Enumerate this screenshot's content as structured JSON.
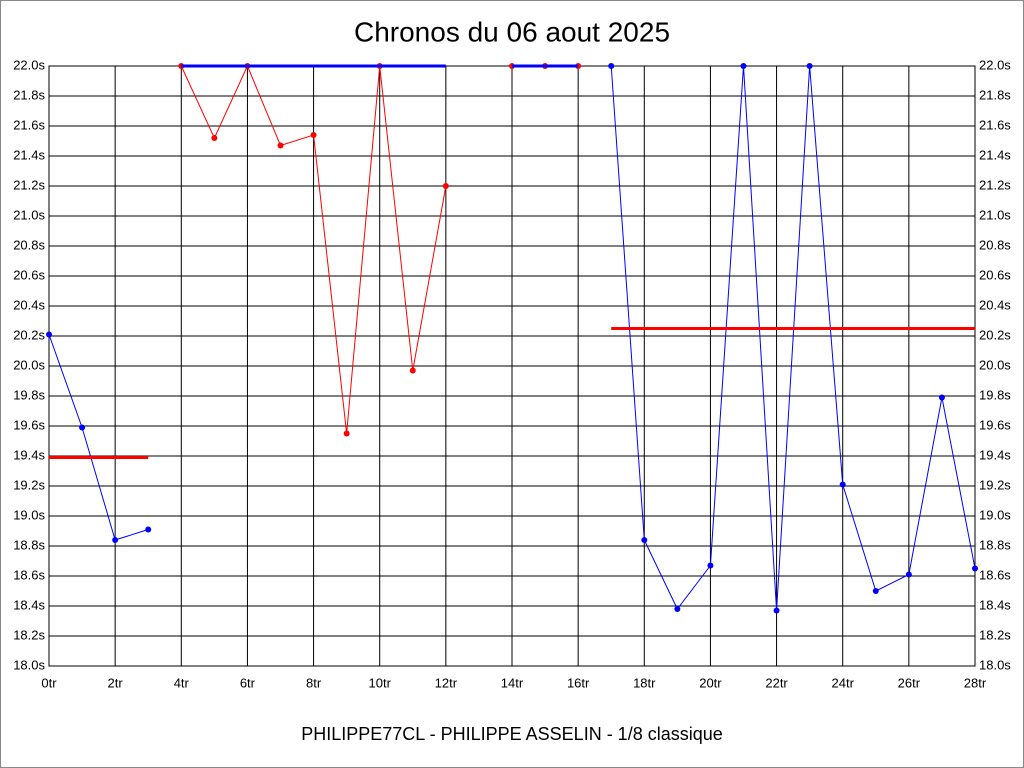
{
  "chart_data": {
    "type": "line",
    "title": "Chronos du 06 aout 2025",
    "xlabel": "PHILIPPE77CL - PHILIPPE ASSELIN - 1/8 classique",
    "grid": true,
    "xlim": [
      0,
      28
    ],
    "ylim": [
      18.0,
      22.0
    ],
    "xticks": [
      {
        "value": 0,
        "label": "0tr"
      },
      {
        "value": 2,
        "label": "2tr"
      },
      {
        "value": 4,
        "label": "4tr"
      },
      {
        "value": 6,
        "label": "6tr"
      },
      {
        "value": 8,
        "label": "8tr"
      },
      {
        "value": 10,
        "label": "10tr"
      },
      {
        "value": 12,
        "label": "12tr"
      },
      {
        "value": 14,
        "label": "14tr"
      },
      {
        "value": 16,
        "label": "16tr"
      },
      {
        "value": 18,
        "label": "18tr"
      },
      {
        "value": 20,
        "label": "20tr"
      },
      {
        "value": 22,
        "label": "22tr"
      },
      {
        "value": 24,
        "label": "24tr"
      },
      {
        "value": 26,
        "label": "26tr"
      },
      {
        "value": 28,
        "label": "28tr"
      }
    ],
    "yticks": [
      {
        "value": 18.0,
        "label": "18.0s"
      },
      {
        "value": 18.2,
        "label": "18.2s"
      },
      {
        "value": 18.4,
        "label": "18.4s"
      },
      {
        "value": 18.6,
        "label": "18.6s"
      },
      {
        "value": 18.8,
        "label": "18.8s"
      },
      {
        "value": 19.0,
        "label": "19.0s"
      },
      {
        "value": 19.2,
        "label": "19.2s"
      },
      {
        "value": 19.4,
        "label": "19.4s"
      },
      {
        "value": 19.6,
        "label": "19.6s"
      },
      {
        "value": 19.8,
        "label": "19.8s"
      },
      {
        "value": 20.0,
        "label": "20.0s"
      },
      {
        "value": 20.2,
        "label": "20.2s"
      },
      {
        "value": 20.4,
        "label": "20.4s"
      },
      {
        "value": 20.6,
        "label": "20.6s"
      },
      {
        "value": 20.8,
        "label": "20.8s"
      },
      {
        "value": 21.0,
        "label": "21.0s"
      },
      {
        "value": 21.2,
        "label": "21.2s"
      },
      {
        "value": 21.4,
        "label": "21.4s"
      },
      {
        "value": 21.6,
        "label": "21.6s"
      },
      {
        "value": 21.8,
        "label": "21.8s"
      },
      {
        "value": 22.0,
        "label": "22.0s"
      }
    ],
    "series": [
      {
        "color": "#0000ff",
        "x": [
          0,
          1,
          2,
          3,
          4,
          17,
          18,
          19,
          20,
          21,
          22,
          23,
          24,
          25,
          26,
          27,
          28
        ],
        "values": [
          20.21,
          19.59,
          18.84,
          18.91,
          null,
          22.0,
          18.84,
          18.38,
          18.67,
          22.0,
          18.37,
          22.0,
          19.21,
          18.5,
          18.61,
          19.79,
          18.65
        ]
      },
      {
        "color": "#ff0000",
        "x": [
          4,
          5,
          6,
          7,
          8,
          9,
          10,
          11,
          12,
          13,
          14,
          15,
          16
        ],
        "values": [
          22.0,
          21.52,
          22.0,
          21.47,
          21.54,
          19.55,
          22.0,
          19.97,
          21.2,
          null,
          22.0,
          22.0,
          22.0
        ]
      }
    ],
    "hlines": [
      {
        "color": "#ff0000",
        "x": [
          0,
          3
        ],
        "y": 19.39
      },
      {
        "color": "#ff0000",
        "x": [
          17,
          28
        ],
        "y": 20.25
      },
      {
        "color": "#0000ff",
        "x": [
          4,
          12
        ],
        "y": 22.0
      },
      {
        "color": "#0000ff",
        "x": [
          14,
          16
        ],
        "y": 22.0
      }
    ]
  }
}
